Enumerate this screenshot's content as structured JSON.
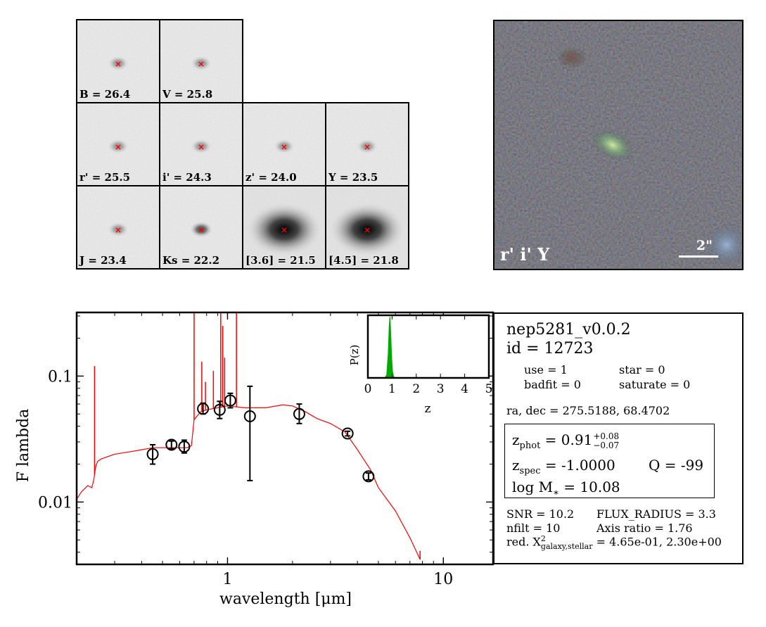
{
  "stamps": [
    {
      "label": "B = 26.4",
      "style": "faint"
    },
    {
      "label": "V = 25.8",
      "style": "faint"
    },
    {
      "label": "r' = 25.5",
      "style": "faint"
    },
    {
      "label": "i' = 24.3",
      "style": "faint"
    },
    {
      "label": "z' = 24.0",
      "style": "faint"
    },
    {
      "label": "Y = 23.5",
      "style": "faint"
    },
    {
      "label": "J = 23.4",
      "style": "faint"
    },
    {
      "label": "Ks = 22.2",
      "style": "medium"
    },
    {
      "label": "[3.6] = 21.5",
      "style": "bright"
    },
    {
      "label": "[4.5] = 21.8",
      "style": "bright"
    }
  ],
  "color_image": {
    "label": "r' i' Y",
    "scale_label": "2\""
  },
  "info": {
    "catalog": "nep5281_v0.0.2",
    "id_line": "id =  12723",
    "use": "use = 1",
    "star": "star = 0",
    "badfit": "badfit = 0",
    "saturate": "saturate = 0",
    "radec": "ra, dec = 275.5188, 68.4702",
    "zphot_label": "z",
    "zphot_sub": "phot",
    "zphot_value": " = 0.91",
    "zphot_err_up": "+0.08",
    "zphot_err_down": "−0.07",
    "zspec_label": "z",
    "zspec_sub": "spec",
    "zspec_value": " = -1.0000",
    "q": "Q = -99",
    "logm_label": "log M",
    "logm_sub": "∗",
    "logm_value": " = 10.08",
    "snr": "SNR = 10.2",
    "flux_radius": "FLUX_RADIUS = 3.3",
    "nfilt": "nfilt = 10",
    "axis_ratio": "Axis ratio = 1.76",
    "chi_prefix": "red. X",
    "chi_sup": "2",
    "chi_sub": "galaxy,stellar",
    "chi_values": " = 4.65e-01, 2.30e+00"
  },
  "colors": {
    "model": "#ff0000",
    "pz_fill": "#00aa00",
    "points": "#000000"
  },
  "chart_data": [
    {
      "type": "scatter",
      "xlabel": "wavelength [μm]",
      "ylabel": "F lambda",
      "xscale": "log",
      "yscale": "log",
      "xlim": [
        0.2,
        17
      ],
      "ylim": [
        0.0032,
        0.32
      ],
      "x_ticks": [
        1,
        10
      ],
      "x_tick_labels": [
        "1",
        "10"
      ],
      "y_ticks": [
        0.01,
        0.1
      ],
      "y_tick_labels": [
        "0.01",
        "0.1"
      ],
      "points": [
        {
          "x": 0.45,
          "y": 0.024,
          "ylo": 0.02,
          "yhi": 0.0285
        },
        {
          "x": 0.55,
          "y": 0.0285,
          "ylo": 0.0265,
          "yhi": 0.0305
        },
        {
          "x": 0.63,
          "y": 0.0275,
          "ylo": 0.0245,
          "yhi": 0.031
        },
        {
          "x": 0.77,
          "y": 0.055,
          "ylo": 0.05,
          "yhi": 0.061
        },
        {
          "x": 0.92,
          "y": 0.054,
          "ylo": 0.046,
          "yhi": 0.063
        },
        {
          "x": 1.03,
          "y": 0.064,
          "ylo": 0.056,
          "yhi": 0.073
        },
        {
          "x": 1.27,
          "y": 0.048,
          "ylo": 0.0148,
          "yhi": 0.083
        },
        {
          "x": 2.15,
          "y": 0.05,
          "ylo": 0.042,
          "yhi": 0.06
        },
        {
          "x": 3.6,
          "y": 0.035,
          "ylo": 0.0335,
          "yhi": 0.0365
        },
        {
          "x": 4.5,
          "y": 0.016,
          "ylo": 0.015,
          "yhi": 0.017
        }
      ],
      "model": {
        "x": [
          0.2,
          0.21,
          0.225,
          0.235,
          0.24,
          0.245,
          0.25,
          0.26,
          0.3,
          0.35,
          0.4,
          0.45,
          0.5,
          0.55,
          0.6,
          0.65,
          0.68,
          0.7,
          0.75,
          0.8,
          0.9,
          1.0,
          1.2,
          1.5,
          1.8,
          2.0,
          2.3,
          2.6,
          3.0,
          3.5,
          4.0,
          4.6,
          5.0,
          6.0,
          7.0,
          7.8
        ],
        "y": [
          0.0105,
          0.012,
          0.0135,
          0.013,
          0.015,
          0.019,
          0.021,
          0.022,
          0.024,
          0.025,
          0.026,
          0.027,
          0.027,
          0.027,
          0.027,
          0.027,
          0.028,
          0.045,
          0.052,
          0.054,
          0.056,
          0.058,
          0.056,
          0.056,
          0.059,
          0.058,
          0.052,
          0.046,
          0.042,
          0.036,
          0.026,
          0.018,
          0.013,
          0.0085,
          0.0052,
          0.0035
        ]
      },
      "emission_lines": [
        {
          "x": 0.242,
          "y": 0.12
        },
        {
          "x": 0.7,
          "y": 0.32
        },
        {
          "x": 0.76,
          "y": 0.13
        },
        {
          "x": 0.79,
          "y": 0.09
        },
        {
          "x": 0.86,
          "y": 0.11
        },
        {
          "x": 0.93,
          "y": 0.32
        },
        {
          "x": 0.95,
          "y": 0.25
        },
        {
          "x": 0.97,
          "y": 0.14
        },
        {
          "x": 1.1,
          "y": 0.32
        }
      ]
    },
    {
      "type": "area",
      "ylabel": "P(z)",
      "xlabel": "z",
      "xlim": [
        0,
        5
      ],
      "x_ticks": [
        0,
        1,
        2,
        3,
        4,
        5
      ],
      "x_tick_labels": [
        "0",
        "1",
        "2",
        "3",
        "4",
        "5"
      ],
      "x": [
        0.7,
        0.78,
        0.84,
        0.88,
        0.91,
        0.94,
        0.98,
        1.02,
        1.06,
        1.1
      ],
      "y": [
        0.0,
        0.05,
        0.4,
        0.85,
        1.0,
        0.8,
        0.35,
        0.1,
        0.03,
        0.0
      ]
    }
  ]
}
